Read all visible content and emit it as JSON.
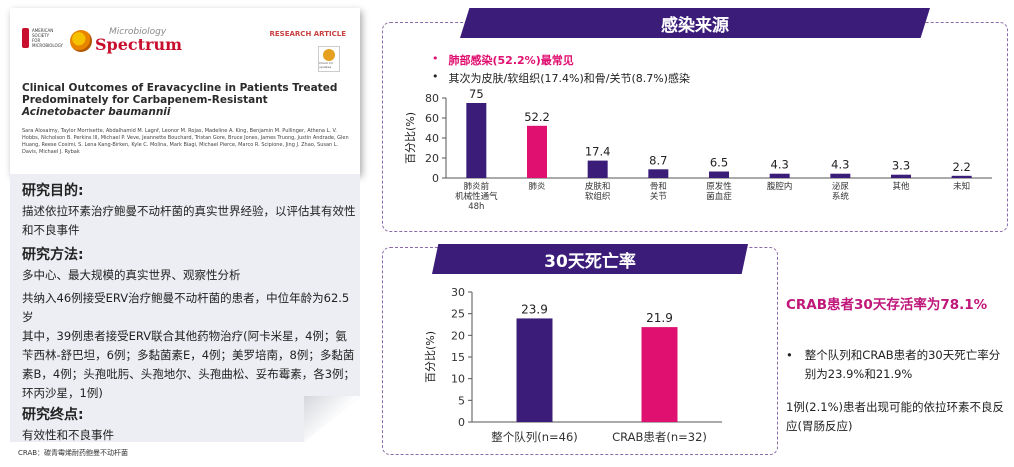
{
  "paper": {
    "asm_logo_text": "AMERICAN SOCIETY FOR MICROBIOLOGY",
    "journal_top": "Microbiology",
    "journal_name": "Spectrum",
    "article_type": "RESEARCH ARTICLE",
    "badge_text": "Check for updates",
    "title_main": "Clinical Outcomes of Eravacycline in Patients Treated Predominately for Carbapenem-Resistant ",
    "title_italic": "Acinetobacter baumannii",
    "authors": "Sara Alosaimy, Taylor Morrisette, Abdalhamid M. Lagnf, Leonor M. Rojas, Madeline A. King, Benjamin M. Pullinger, Athena L. V. Hobbs, Nicholson B. Perkins III, Michael P. Veve, Jeannette Bouchard, Tristan Gore, Bruce Jones, James Truong, Justin Andrade, Glen Huang, Reese Cosimi, S. Lena Kang-Birken, Kyle C. Molina, Mark Biagi, Michael Pierce, Marco R. Scipione, Jing J. Zhao, Susan L. Davis, Michael J. Rybak"
  },
  "left": {
    "purpose_h": "研究目的:",
    "purpose_p": "描述依拉环素治疗鲍曼不动杆菌的真实世界经验，以评估其有效性和不良事件",
    "method_h": "研究方法:",
    "method_p1": "多中心、最大规模的真实世界、观察性分析",
    "method_p2": "共纳入46例接受ERV治疗鲍曼不动杆菌的患者，中位年龄为62.5岁",
    "method_p3": "其中，39例患者接受ERV联合其他药物治疗(阿卡米星，4例；氨苄西林-舒巴坦，6例；多黏菌素E，4例；美罗培南，8例；多黏菌素B，4例；头孢吡肟、头孢地尔、头孢曲松、妥布霉素，各3例；环丙沙星，1例)",
    "endpoint_h": "研究终点:",
    "endpoint_p": "有效性和不良事件",
    "footnote": "CRAB：碳青霉烯耐药鲍曼不动杆菌"
  },
  "infection": {
    "banner": "感染来源",
    "bullet1": "肺部感染(52.2%)最常见",
    "bullet2": "其次为皮肤/软组织(17.4%)和骨/关节(8.7%)感染"
  },
  "mortality": {
    "banner": "30天死亡率"
  },
  "right_note": {
    "headline": "CRAB患者30天存活率为78.1%",
    "bullet": "整个队列和CRAB患者的30天死亡率分别为23.9%和21.9%",
    "text": "1例(2.1%)患者出现可能的依拉环素不良反应(胃肠反应)"
  },
  "chart_data": [
    {
      "type": "bar",
      "ylabel": "百分比(%)",
      "ylim": [
        0,
        80
      ],
      "yticks": [
        0,
        20,
        40,
        60,
        80
      ],
      "grid": false,
      "categories": [
        "肺炎前\n机械性通气\n48h",
        "肺炎",
        "皮肤和\n软组织",
        "骨和\n关节",
        "原发性\n菌血症",
        "腹腔内",
        "泌尿\n系统",
        "其他",
        "未知"
      ],
      "values": [
        75,
        52.2,
        17.4,
        8.7,
        6.5,
        4.3,
        4.3,
        3.3,
        2.2
      ],
      "value_labels": [
        "75",
        "52.2",
        "17.4",
        "8.7",
        "6.5",
        "4.3",
        "4.3",
        "3.3",
        "2.2"
      ],
      "colors": [
        "#3b1d79",
        "#e01070",
        "#3b1d79",
        "#3b1d79",
        "#3b1d79",
        "#3b1d79",
        "#3b1d79",
        "#3b1d79",
        "#3b1d79"
      ]
    },
    {
      "type": "bar",
      "ylabel": "百分比(%)",
      "ylim": [
        0,
        30
      ],
      "yticks": [
        0,
        5,
        10,
        15,
        20,
        25,
        30
      ],
      "grid": false,
      "categories": [
        "整个队列(n=46)",
        "CRAB患者(n=32)"
      ],
      "values": [
        23.9,
        21.9
      ],
      "value_labels": [
        "23.9",
        "21.9"
      ],
      "colors": [
        "#3b1d79",
        "#e01070"
      ]
    }
  ]
}
